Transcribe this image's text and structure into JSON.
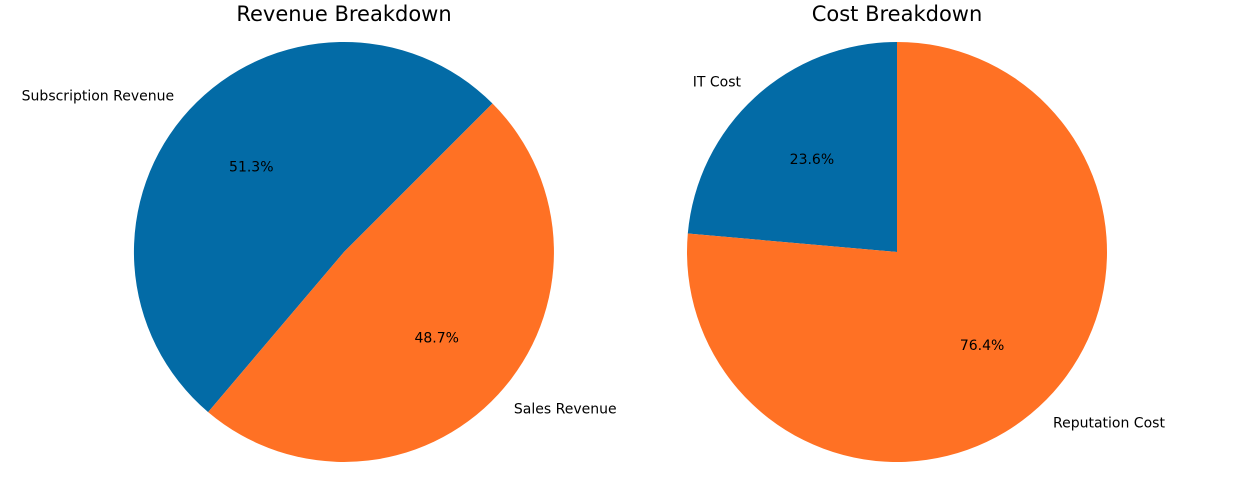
{
  "chart_data": [
    {
      "type": "pie",
      "title": "Revenue Breakdown",
      "labels": [
        "Subscription Revenue",
        "Sales Revenue"
      ],
      "values": [
        51.3,
        48.7
      ],
      "value_labels": [
        "51.3%",
        "48.7%"
      ],
      "colors": [
        "#036ba6",
        "#ff7124"
      ],
      "start_angle_deg": 45,
      "direction": "counterclockwise",
      "legend": "none"
    },
    {
      "type": "pie",
      "title": "Cost Breakdown",
      "labels": [
        "IT Cost",
        "Reputation Cost"
      ],
      "values": [
        23.6,
        76.4
      ],
      "value_labels": [
        "23.6%",
        "76.4%"
      ],
      "colors": [
        "#036ba6",
        "#ff7124"
      ],
      "start_angle_deg": 90,
      "direction": "counterclockwise",
      "legend": "none"
    }
  ]
}
